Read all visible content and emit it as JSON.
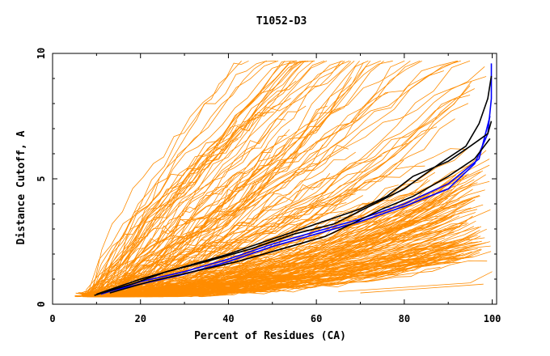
{
  "chart_data": {
    "type": "line",
    "title": "T1052-D3",
    "xlabel": "Percent of Residues (CA)",
    "ylabel": "Distance Cutoff, A",
    "xlim": [
      0,
      101
    ],
    "ylim": [
      0,
      10
    ],
    "x_ticks": [
      0,
      20,
      40,
      60,
      80,
      100
    ],
    "y_ticks": [
      0,
      5,
      10
    ],
    "grid": false,
    "colors": {
      "background_models": "#ff8c00",
      "highlight_blue": "#0000ff",
      "highlight_black": "#000000"
    },
    "series": [
      {
        "color": "#0000ff",
        "x": [
          10,
          20,
          30,
          40,
          50,
          60,
          70,
          80,
          90,
          96,
          99,
          99.8,
          99.8
        ],
        "y": [
          0.4,
          0.8,
          1.2,
          1.7,
          2.3,
          2.8,
          3.3,
          3.9,
          4.6,
          5.6,
          6.8,
          8.2,
          9.6
        ]
      },
      {
        "color": "#0000ff",
        "x": [
          11,
          20,
          30,
          40,
          50,
          60,
          70,
          80,
          90,
          97,
          99.5
        ],
        "y": [
          0.4,
          0.9,
          1.3,
          1.8,
          2.4,
          2.9,
          3.4,
          4.0,
          4.8,
          5.8,
          7.5
        ]
      },
      {
        "color": "#000000",
        "x": [
          9.5,
          18,
          26,
          35,
          45,
          55,
          64,
          72,
          80,
          88,
          94,
          97,
          99,
          99.8
        ],
        "y": [
          0.35,
          0.8,
          1.3,
          1.7,
          2.2,
          2.8,
          3.2,
          3.9,
          4.6,
          5.6,
          6.3,
          7.2,
          8.2,
          9.1
        ]
      },
      {
        "color": "#000000",
        "x": [
          10,
          20,
          30,
          40,
          50,
          60,
          70,
          76,
          82,
          90,
          95,
          99,
          99.8
        ],
        "y": [
          0.4,
          1.0,
          1.5,
          2.0,
          2.6,
          3.2,
          3.8,
          4.3,
          5.1,
          5.7,
          6.3,
          6.8,
          7.3
        ]
      },
      {
        "color": "#000000",
        "x": [
          13,
          22,
          32,
          42,
          52,
          62,
          68,
          75,
          82,
          90,
          96,
          99.5
        ],
        "y": [
          0.45,
          0.9,
          1.3,
          1.7,
          2.2,
          2.7,
          3.2,
          3.8,
          4.3,
          5.1,
          5.8,
          6.6
        ]
      }
    ]
  }
}
